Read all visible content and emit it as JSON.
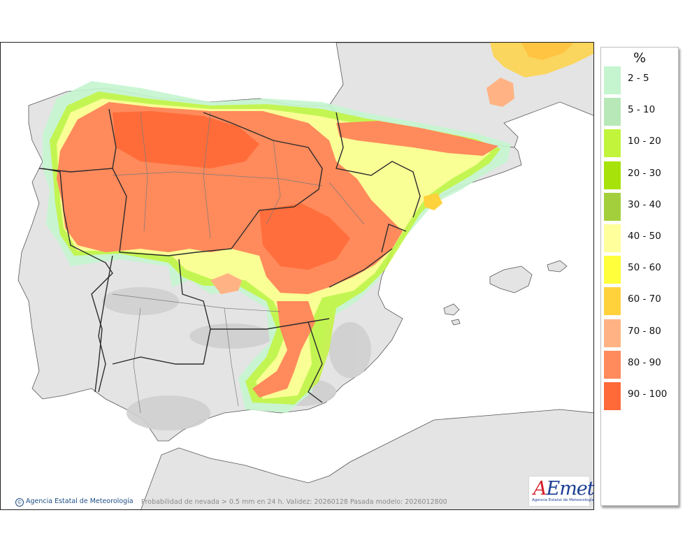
{
  "legend": {
    "unit": "%",
    "classes": [
      {
        "label": "2 - 5",
        "color": "#c4f5cf"
      },
      {
        "label": "5 - 10",
        "color": "#b8e8b8"
      },
      {
        "label": "10 - 20",
        "color": "#c2f43c"
      },
      {
        "label": "20 - 30",
        "color": "#a7e20a"
      },
      {
        "label": "30 - 40",
        "color": "#a4cf3c"
      },
      {
        "label": "40 - 50",
        "color": "#ffff9c"
      },
      {
        "label": "50 - 60",
        "color": "#ffff3c"
      },
      {
        "label": "60 - 70",
        "color": "#ffd23c"
      },
      {
        "label": "70 - 80",
        "color": "#ffb384"
      },
      {
        "label": "80 - 90",
        "color": "#ff8a5c"
      },
      {
        "label": "90 - 100",
        "color": "#ff6a38"
      }
    ]
  },
  "colors": {
    "sea": "#ffffff",
    "land": "#e4e4e4",
    "relief": "#c9c9c9",
    "borders": "#3a3a3a",
    "provinces": "#7a7a7a"
  },
  "credit": {
    "icon": "copyright-icon",
    "text": "Agencia Estatal de Meteorología"
  },
  "caption": "Probabilidad de nevada > 0.5 mm en 24 h. Validez: 20260128 Pasada modelo: 2026012800",
  "logo": {
    "word_a": "A",
    "word_rest": "Emet",
    "subtitle": "Agencia Estatal de Meteorología"
  }
}
